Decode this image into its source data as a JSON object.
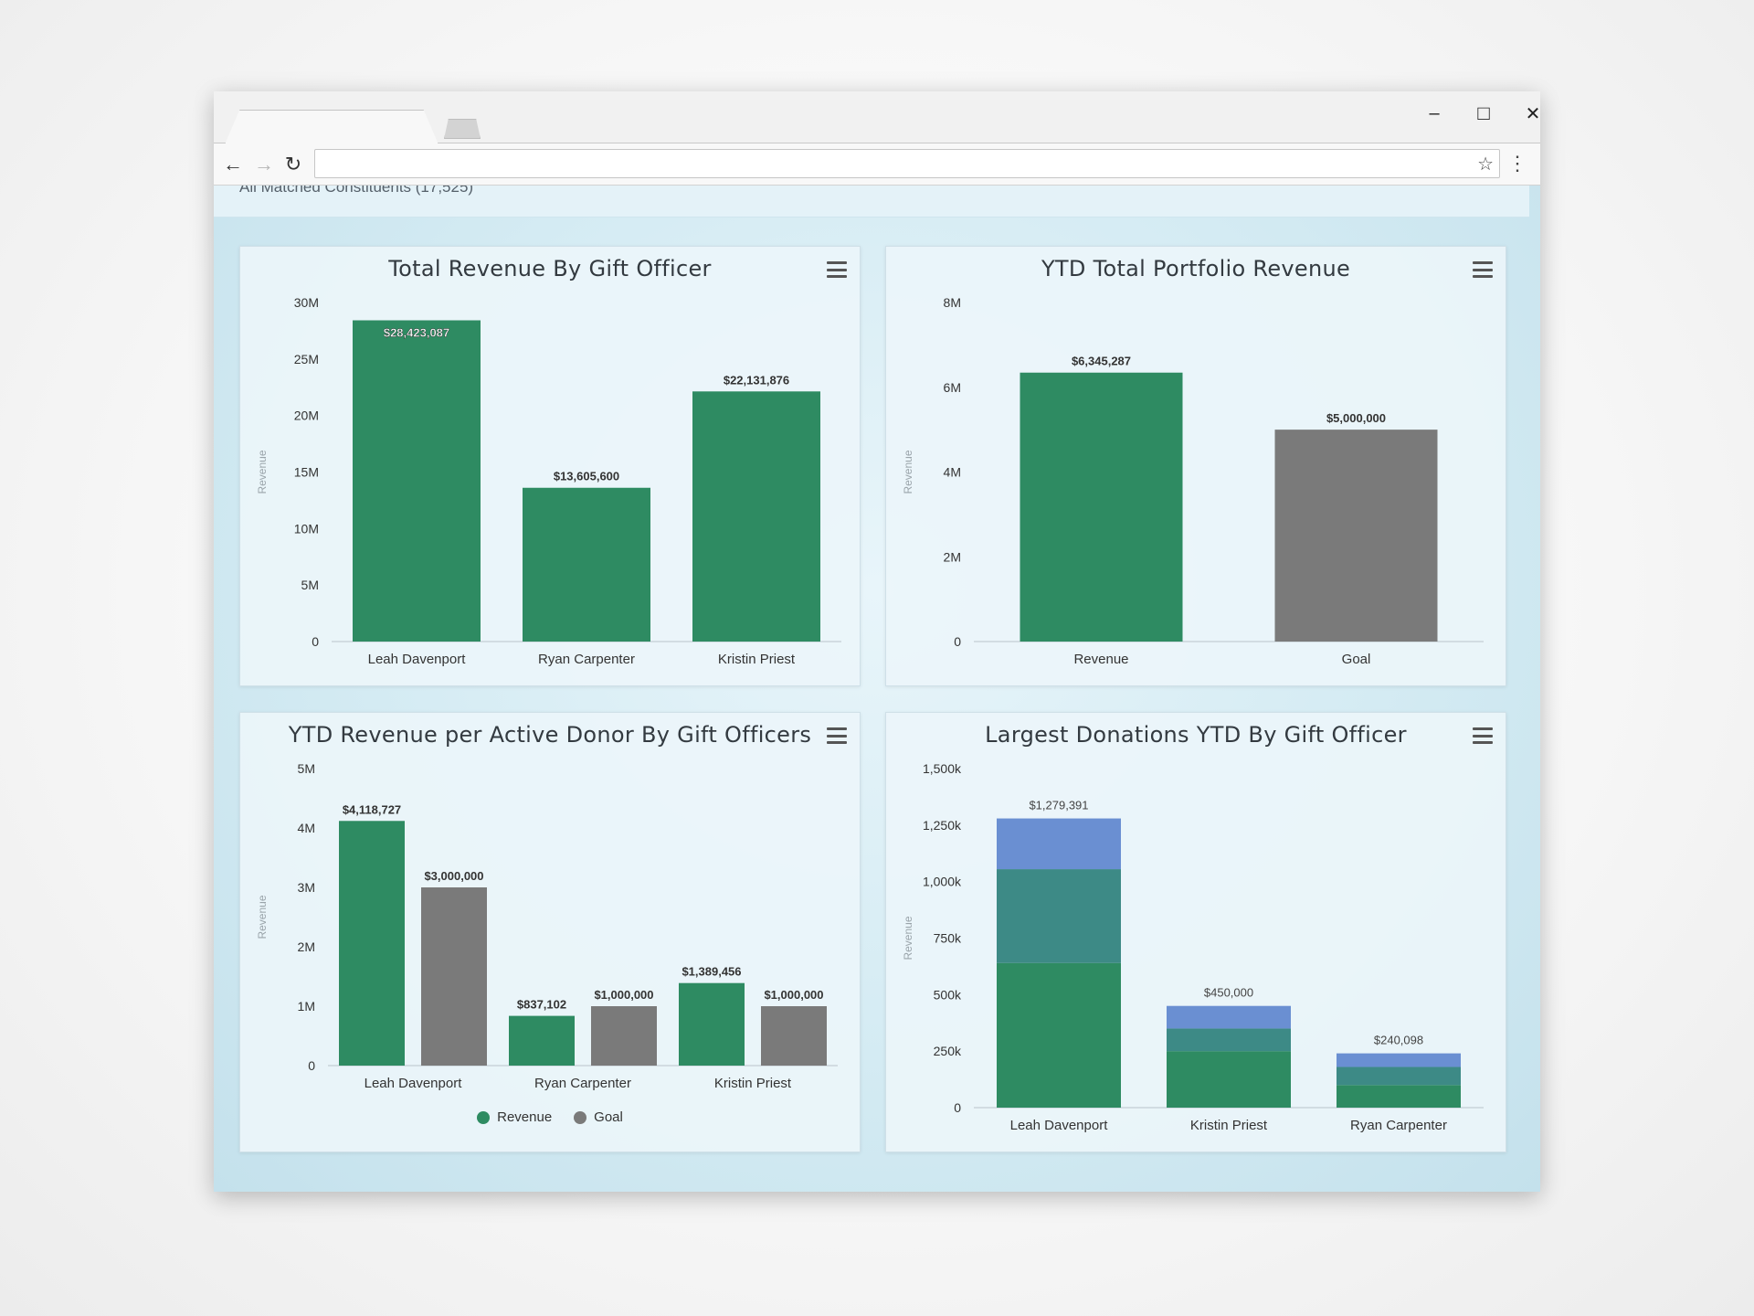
{
  "browser": {
    "address": "",
    "controls": {
      "minimize": "–",
      "maximize": "□",
      "close": "✕"
    },
    "nav": {
      "back": "←",
      "forward": "→",
      "reload": "↻",
      "star": "☆",
      "menu": "⋮"
    }
  },
  "page": {
    "header_text": "All Matched Constituents (17,525)",
    "colors": {
      "green": "#2e8b62",
      "gray": "#7a7a7a",
      "blue": "#6a8fd2",
      "teal": "#3d8a86"
    }
  },
  "charts": {
    "c1": {
      "title": "Total Revenue By Gift Officer"
    },
    "c2": {
      "title": "YTD Total Portfolio Revenue"
    },
    "c3": {
      "title": "YTD Revenue per Active Donor By Gift Officers",
      "legend": [
        "Revenue",
        "Goal"
      ]
    },
    "c4": {
      "title": "Largest Donations YTD By Gift Officer"
    }
  },
  "chart_data": [
    {
      "type": "bar",
      "title": "Total Revenue By Gift Officer",
      "ylabel": "Revenue",
      "categories": [
        "Leah Davenport",
        "Ryan Carpenter",
        "Kristin Priest"
      ],
      "values": [
        28423087,
        13605600,
        22131876
      ],
      "data_labels": [
        "$28,423,087",
        "$13,605,600",
        "$22,131,876"
      ],
      "ylim": [
        0,
        30000000
      ],
      "yticks": [
        0,
        5000000,
        10000000,
        15000000,
        20000000,
        25000000,
        30000000
      ],
      "ytick_labels": [
        "0",
        "5M",
        "10M",
        "15M",
        "20M",
        "25M",
        "30M"
      ],
      "color": "#2e8b62"
    },
    {
      "type": "bar",
      "title": "YTD Total Portfolio Revenue",
      "ylabel": "Revenue",
      "categories": [
        "Revenue",
        "Goal"
      ],
      "values": [
        6345287,
        5000000
      ],
      "data_labels": [
        "$6,345,287",
        "$5,000,000"
      ],
      "colors": [
        "#2e8b62",
        "#7a7a7a"
      ],
      "ylim": [
        0,
        8000000
      ],
      "yticks": [
        0,
        2000000,
        4000000,
        6000000,
        8000000
      ],
      "ytick_labels": [
        "0",
        "2M",
        "4M",
        "6M",
        "8M"
      ]
    },
    {
      "type": "bar",
      "title": "YTD Revenue per Active Donor By Gift Officers",
      "ylabel": "Revenue",
      "categories": [
        "Leah Davenport",
        "Ryan Carpenter",
        "Kristin Priest"
      ],
      "series": [
        {
          "name": "Revenue",
          "values": [
            4118727,
            837102,
            1389456
          ],
          "data_labels": [
            "$4,118,727",
            "$837,102",
            "$1,389,456"
          ],
          "color": "#2e8b62"
        },
        {
          "name": "Goal",
          "values": [
            3000000,
            1000000,
            1000000
          ],
          "data_labels": [
            "$3,000,000",
            "$1,000,000",
            "$1,000,000"
          ],
          "color": "#7a7a7a"
        }
      ],
      "ylim": [
        0,
        5000000
      ],
      "yticks": [
        0,
        1000000,
        2000000,
        3000000,
        4000000,
        5000000
      ],
      "ytick_labels": [
        "0",
        "1M",
        "2M",
        "3M",
        "4M",
        "5M"
      ],
      "legend": "bottom"
    },
    {
      "type": "bar",
      "stacked": true,
      "title": "Largest Donations YTD By Gift Officer",
      "ylabel": "Revenue",
      "categories": [
        "Leah Davenport",
        "Kristin Priest",
        "Ryan Carpenter"
      ],
      "series": [
        {
          "values": [
            640000,
            250000,
            100000
          ],
          "color": "#2e8b62"
        },
        {
          "values": [
            415000,
            100000,
            80000
          ],
          "color": "#3d8a86"
        },
        {
          "values": [
            224391,
            100000,
            60098
          ],
          "color": "#6a8fd2"
        }
      ],
      "totals": [
        1279391,
        450000,
        240098
      ],
      "data_labels": [
        "$1,279,391",
        "$450,000",
        "$240,098"
      ],
      "ylim": [
        0,
        1500000
      ],
      "yticks": [
        0,
        250000,
        500000,
        750000,
        1000000,
        1250000,
        1500000
      ],
      "ytick_labels": [
        "0",
        "250k",
        "500k",
        "750k",
        "1,000k",
        "1,250k",
        "1,500k"
      ]
    }
  ]
}
